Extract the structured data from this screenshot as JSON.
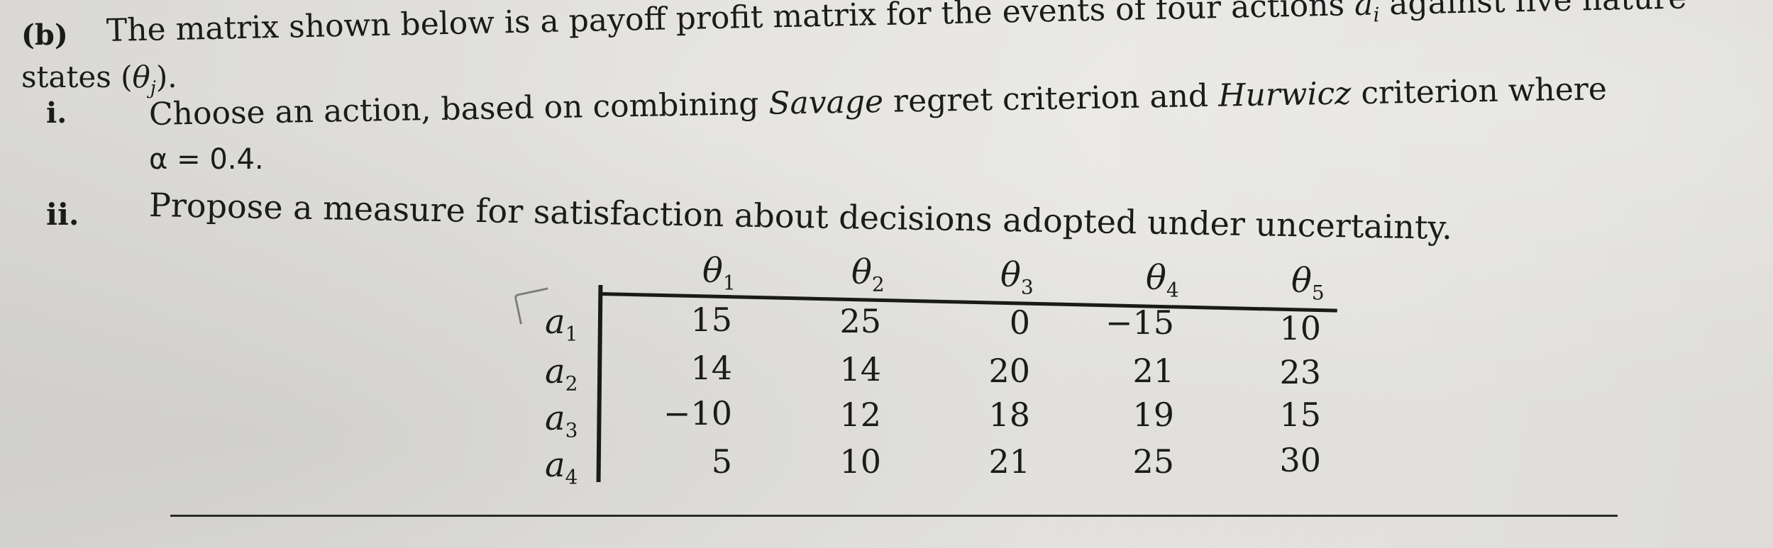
{
  "question": {
    "part_label": "(b)",
    "intro": "The matrix shown below is a payoff profit matrix for the events of four actions",
    "action_symbol": "a",
    "action_index": "i",
    "intro_cont": " against five nature",
    "states_prefix": "states (",
    "state_symbol": "θ",
    "state_index": "j",
    "states_suffix": ").",
    "item1_label": "i.",
    "item1_text_a": "Choose an action, based on combining ",
    "item1_savage": "Savage",
    "item1_text_b": " regret criterion and ",
    "item1_hurwicz": "Hurwicz",
    "item1_text_c": " criterion where",
    "item1_alpha": "α = 0.4.",
    "item2_label": "ii.",
    "item2_text": "Propose a measure for satisfaction about decisions adopted under uncertainty."
  },
  "matrix": {
    "columns": [
      {
        "symbol": "θ",
        "index": "1"
      },
      {
        "symbol": "θ",
        "index": "2"
      },
      {
        "symbol": "θ",
        "index": "3"
      },
      {
        "symbol": "θ",
        "index": "4"
      },
      {
        "symbol": "θ",
        "index": "5"
      }
    ],
    "rows": [
      {
        "symbol": "a",
        "index": "1",
        "values": [
          "15",
          "25",
          "0",
          "−15",
          "10"
        ]
      },
      {
        "symbol": "a",
        "index": "2",
        "values": [
          "14",
          "14",
          "20",
          "21",
          "23"
        ]
      },
      {
        "symbol": "a",
        "index": "3",
        "values": [
          "−10",
          "12",
          "18",
          "19",
          "15"
        ]
      },
      {
        "symbol": "a",
        "index": "4",
        "values": [
          "5",
          "10",
          "21",
          "25",
          "30"
        ]
      }
    ]
  }
}
